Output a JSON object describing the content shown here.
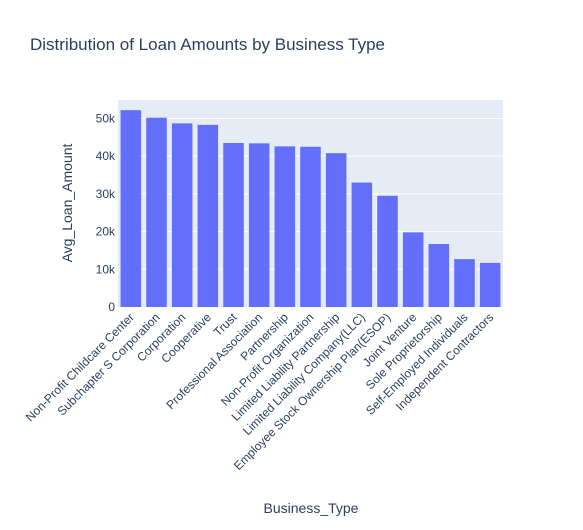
{
  "chart_data": {
    "type": "bar",
    "title": "Distribution of Loan Amounts by Business Type",
    "xlabel": "Business_Type",
    "ylabel": "Avg_Loan_Amount",
    "categories": [
      "Non-Profit Childcare Center",
      "Subchapter S Corporation",
      "Corporation",
      "Cooperative",
      "Trust",
      "Professional Association",
      "Partnership",
      "Non-Profit Organization",
      "Limited Liability Partnership",
      "Limited Liability Company(LLC)",
      "Employee Stock Ownership Plan(ESOP)",
      "Joint Venture",
      "Sole Proprietorship",
      "Self-Employed Individuals",
      "Independent Contractors"
    ],
    "values": [
      52200,
      50200,
      48700,
      48300,
      43500,
      43400,
      42600,
      42500,
      40800,
      33000,
      29500,
      19800,
      16700,
      12700,
      11700
    ],
    "ylim": [
      0,
      54900
    ],
    "yticks": [
      0,
      10000,
      20000,
      30000,
      40000,
      50000
    ],
    "ytick_labels": [
      "0",
      "10k",
      "20k",
      "30k",
      "40k",
      "50k"
    ],
    "grid": true,
    "colors": {
      "bar": "#636efa",
      "plot_bg": "#e5ecf6",
      "text": "#2a3f5f"
    }
  }
}
